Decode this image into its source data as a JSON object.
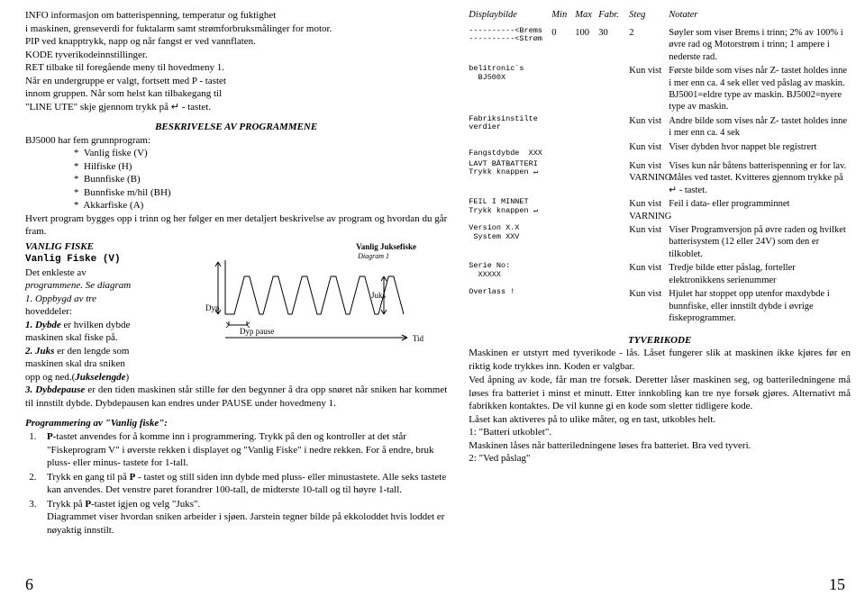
{
  "left": {
    "intro": [
      "INFO informasjon om batterispenning, temperatur og fuktighet",
      "i maskinen, grenseverdi for fuktalarm samt strømforbruksmålinger for motor.",
      "PIP ved knapptrykk, napp og når fangst er ved vannflaten.",
      "KODE tyverikodeinnstillinger.",
      "RET tilbake til foregående meny til hovedmeny 1.",
      "Når en undergruppe er valgt, fortsett med P - tastet",
      "innom gruppen. Når som helst kan tilbakegang til",
      "\"LINE UTE\" skje gjennom trykk på ↵ - tastet."
    ],
    "beskHead": "BESKRIVELSE AV PROGRAMMENE",
    "prog_intro": "BJ5000 har fem grunnprogram:",
    "programs": [
      "Vanlig fiske (V)",
      "Hilfiske (H)",
      "Bunnfiske (B)",
      "Bunnfiske m/hil (BH)",
      "Akkarfiske (A)"
    ],
    "prog_after": "Hvert program bygges opp i trinn og her følger en mer detaljert beskrivelse av program og hvordan du går fram.",
    "vfHead": "VANLIG FISKE",
    "vfMono": "Vanlig Fiske (V)",
    "vfLines": [
      "Det enkleste av",
      "programmene. Se diagram",
      "1. Oppbygd av tre",
      "hoveddeler:",
      "1. Dybde er hvilken dybde",
      "maskinen skal fiske på.",
      "2. Juks er den lengde som",
      "maskinen skal dra sniken",
      "opp og ned.(Jukselengde)"
    ],
    "vfAfter": "3. Dybdepause er den tiden maskinen står stille før den begynner å dra opp snøret når sniken har kommet til innstilt dybde. Dybdepausen kan endres under PAUSE under hovedmeny 1.",
    "progHead": "Programmering av \"Vanlig fiske\":",
    "progList": [
      "P-tastet anvendes for å komme inn i programmering. Trykk på den og kontroller at det står \"Fiskeprogram V\" i øverste rekken i displayet og \"Vanlig Fiske\" i nedre rekken. For å endre, bruk pluss- eller minus- tastete for 1-tall.",
      "Trykk en gang til på P - tastet og still siden inn dybde med pluss- eller minustastete. Alle seks tastete kan anvendes. Det venstre paret forandrer 100-tall, de midterste 10-tall og til høyre 1-tall.",
      "Trykk på P-tastet igjen og velg \"Juks\".\nDiagrammet viser hvordan sniken arbeider i sjøen. Jarstein tegner bilde på ekkoloddet hvis loddet er nøyaktig innstilt."
    ],
    "chart": {
      "title": "Vanlig Juksefiske",
      "subtitle": "Diagram 1",
      "dypLabel": "Dyp",
      "pauseLabel": "Dyp pause",
      "juksLabel": "Juks",
      "tidLabel": "Tid",
      "stroke": "#000000",
      "waveBase": 80,
      "waveMin": 38,
      "wavePeriod": 28,
      "nPeaks": 6
    },
    "pageNum": "6"
  },
  "right": {
    "headers": [
      "Displaybilde",
      "Min",
      "Max",
      "Fabr.",
      "Steg",
      "Notater"
    ],
    "rows": [
      {
        "bilde": "----------<Brems\n----------<Strøm",
        "min": "0",
        "max": "100",
        "fabr": "30",
        "steg": "2",
        "notes": "Søyler som viser Brems i trinn; 2% av 100% i øvre rad og Motorstrøm i trinn; 1 ampere i nederste rad."
      },
      {
        "bilde": "belitronic´s\n  BJ500X",
        "steg": "Kun vist",
        "notes": "Første bilde som vises når Z- tastet holdes inne i mer enn ca. 4 sek eller ved påslag av maskin. BJ5001=eldre type av maskin. BJ5002=nyere type av maskin."
      },
      {
        "bilde": "Fabriksinstilte\nverdier",
        "steg": "Kun vist",
        "notes": "Andre bilde som vises når Z- tastet holdes inne i mer enn ca. 4 sek"
      },
      {
        "bilde": "\nFangstdybde  XXX",
        "steg": "Kun vist",
        "notes": "Viser dybden hvor nappet ble registrert"
      },
      {
        "bilde": "LAVT BÅTBATTERI\nTrykk knappen ↵",
        "steg": "Kun vist VARNING",
        "notes": "Vises kun når båtens batterispenning er for lav. Måles ved tastet. Kvitteres gjennom trykke på ↵ - tastet."
      },
      {
        "bilde": "FEIL I MINNET\nTrykk knappen ↵",
        "steg": "Kun vist VARNING",
        "notes": "Feil i data- eller programminnet"
      },
      {
        "bilde": "Version X.X\n System XXV",
        "steg": "Kun vist",
        "notes": "Viser Programversjon på øvre raden og hvilket batterisystem (12 eller 24V) som den er tilkoblet."
      },
      {
        "bilde": "Serie No:\n  XXXXX",
        "steg": "Kun vist",
        "notes": "Tredje bilde etter påslag, forteller elektronikkens serienummer"
      },
      {
        "bilde": "Overlass !",
        "steg": "Kun vist",
        "notes": "Hjulet har stoppet opp utenfor maxdybde i bunnfiske, eller innstilt dybde i øvrige fiskeprogrammer."
      }
    ],
    "tyveriHead": "TYVERIKODE",
    "tyveriIntro": "Maskinen er utstyrt med tyverikode - lås. Låset fungerer slik at maskinen ikke kjøres før en riktig kode trykkes inn. Koden er valgbar.",
    "tyveriBody": "Ved åpning av kode, får man tre forsøk. Deretter låser maskinen seg, og batteriledningene må løses fra batteriet i minst et minutt. Etter innkobling kan tre nye forsøk gjøres. Alternativt må fabrikken kontaktes. De vil kunne gi en kode som sletter tidligere kode.",
    "tyveriLine": "Låset kan aktiveres på to ulike måter, og en tast, utkobles helt.",
    "tyveriList": [
      "1: \"Batteri utkoblet\".",
      "Maskinen låses når batteriledningene løses fra batteriet. Bra ved tyveri.",
      "2: \"Ved påslag\""
    ],
    "pageNum": "15"
  }
}
